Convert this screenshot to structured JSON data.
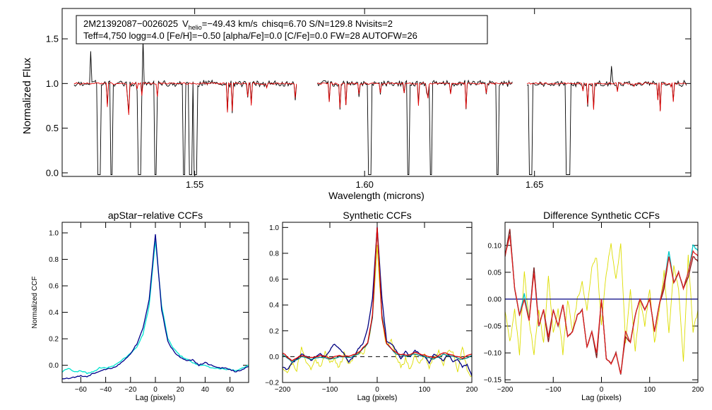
{
  "chart_data": [
    {
      "id": "spectrum",
      "type": "line",
      "title": "",
      "xlabel": "Wavelength (microns)",
      "ylabel": "Normalized Flux",
      "xlim": [
        1.511,
        1.696
      ],
      "ylim": [
        -0.04,
        1.84
      ],
      "xticks": [
        1.55,
        1.6,
        1.65
      ],
      "xtick_labels": [
        "1.55",
        "1.60",
        "1.65"
      ],
      "yticks": [
        0.0,
        0.5,
        1.0,
        1.5
      ],
      "ytick_labels": [
        "0.0",
        "0.5",
        "1.0",
        "1.5"
      ],
      "chips": [
        [
          1.5145,
          1.5802
        ],
        [
          1.5861,
          1.6437
        ],
        [
          1.6478,
          1.6949
        ]
      ],
      "spectrum_bad_pixels": [
        1.5218,
        1.5255,
        1.5338,
        1.5385,
        1.5468,
        1.5488,
        1.5502,
        1.6015,
        1.6129,
        1.6195,
        1.6392,
        1.6488,
        1.6596,
        1.6601
      ],
      "series": [
        {
          "name": "observed",
          "color": "#000000"
        },
        {
          "name": "model",
          "color": "#e00000"
        }
      ],
      "annotation": {
        "id": "2M21392087−0026025",
        "v_prefix": "V",
        "v_subscript": "helio",
        "v_value": "=−49.43 km/s",
        "stats": "chisq=6.70  S/N=129.8  Nvisits=2",
        "line2": "Teff=4,750 logg=4.0 [Fe/H]=−0.50 [alpha/Fe]=0.0 [C/Fe]=0.0 FW=28 AUTOFW=26"
      }
    },
    {
      "id": "apstar-ccf",
      "type": "line",
      "title": "apStar−relative CCFs",
      "xlabel": "Lag (pixels)",
      "ylabel": "Normalized CCF",
      "xlim": [
        -75,
        75
      ],
      "ylim": [
        -0.13,
        1.08
      ],
      "xticks": [
        -60,
        -40,
        -20,
        0,
        20,
        40,
        60
      ],
      "xtick_labels": [
        "−60",
        "−40",
        "−20",
        "0",
        "20",
        "40",
        "60"
      ],
      "yticks": [
        0.0,
        0.2,
        0.4,
        0.6,
        0.8,
        1.0
      ],
      "ytick_labels": [
        "0.0",
        "0.2",
        "0.4",
        "0.6",
        "0.8",
        "1.0"
      ],
      "series": [
        {
          "name": "visit 1",
          "color": "#00e5d0",
          "width": 30,
          "x": [
            -75,
            -70,
            -65,
            -60,
            -55,
            -50,
            -45,
            -40,
            -35,
            -30,
            -25,
            -20,
            -15,
            -10,
            -5,
            0,
            5,
            10,
            15,
            20,
            25,
            30,
            35,
            40,
            45,
            50,
            55,
            60,
            65,
            70,
            75
          ],
          "y": [
            -0.05,
            -0.02,
            -0.05,
            -0.04,
            -0.06,
            -0.05,
            -0.02,
            -0.02,
            -0.01,
            0.02,
            0.05,
            0.09,
            0.14,
            0.23,
            0.45,
            0.94,
            0.45,
            0.2,
            0.12,
            0.07,
            0.05,
            0.02,
            0.0,
            0.0,
            -0.02,
            -0.02,
            -0.03,
            -0.03,
            -0.04,
            -0.02,
            0.0
          ]
        },
        {
          "name": "visit 2",
          "color": "#00008b",
          "width": 26,
          "x": [
            -75,
            -70,
            -65,
            -60,
            -55,
            -50,
            -45,
            -40,
            -35,
            -30,
            -25,
            -20,
            -15,
            -10,
            -5,
            0,
            5,
            10,
            15,
            20,
            25,
            30,
            35,
            40,
            45,
            50,
            55,
            60,
            65,
            70,
            75
          ],
          "y": [
            -0.1,
            -0.1,
            -0.09,
            -0.08,
            -0.09,
            -0.06,
            -0.05,
            -0.03,
            -0.02,
            0.0,
            0.04,
            0.09,
            0.16,
            0.28,
            0.5,
            0.99,
            0.42,
            0.18,
            0.1,
            0.06,
            0.04,
            0.04,
            0.0,
            0.02,
            0.0,
            -0.02,
            -0.02,
            -0.03,
            -0.05,
            -0.03,
            -0.01
          ]
        }
      ]
    },
    {
      "id": "synthetic-ccf",
      "type": "line",
      "title": "Synthetic CCFs",
      "xlabel": "Lag (pixels)",
      "ylabel": "",
      "xlim": [
        -200,
        200
      ],
      "ylim": [
        -0.2,
        1.04
      ],
      "xticks": [
        -200,
        -100,
        0,
        100,
        200
      ],
      "xtick_labels": [
        "−200",
        "−100",
        "0",
        "100",
        "200"
      ],
      "yticks": [
        -0.2,
        0.0,
        0.2,
        0.4,
        0.6,
        0.8,
        1.0
      ],
      "ytick_labels": [
        "−0.2",
        "0.0",
        "0.2",
        "0.4",
        "0.6",
        "0.8",
        "1.0"
      ],
      "zero_line": true,
      "series": [
        {
          "name": "yellow",
          "color": "#dddd00",
          "width": 22,
          "x": [
            -200,
            -190,
            -180,
            -170,
            -160,
            -150,
            -140,
            -130,
            -120,
            -110,
            -100,
            -90,
            -80,
            -70,
            -60,
            -50,
            -40,
            -30,
            -20,
            -10,
            0,
            10,
            20,
            30,
            40,
            50,
            60,
            70,
            80,
            90,
            100,
            110,
            120,
            130,
            140,
            150,
            160,
            170,
            180,
            190,
            200
          ],
          "y": [
            -0.08,
            -0.12,
            -0.05,
            -0.1,
            0.06,
            -0.03,
            -0.1,
            -0.02,
            -0.08,
            0.04,
            -0.05,
            -0.02,
            -0.08,
            0.02,
            -0.06,
            0.0,
            0.04,
            0.02,
            0.1,
            0.3,
            0.85,
            0.3,
            0.08,
            0.12,
            0.0,
            -0.08,
            -0.02,
            -0.1,
            0.02,
            -0.05,
            0.02,
            -0.08,
            0.0,
            0.04,
            -0.06,
            0.06,
            0.02,
            -0.12,
            0.08,
            -0.1,
            -0.15
          ]
        },
        {
          "name": "navy",
          "color": "#000080",
          "width": 20,
          "x": [
            -200,
            -190,
            -180,
            -170,
            -160,
            -150,
            -140,
            -130,
            -120,
            -110,
            -100,
            -90,
            -80,
            -70,
            -60,
            -50,
            -40,
            -30,
            -20,
            -10,
            0,
            10,
            20,
            30,
            40,
            50,
            60,
            70,
            80,
            90,
            100,
            110,
            120,
            130,
            140,
            150,
            160,
            170,
            180,
            190,
            200
          ],
          "y": [
            -0.08,
            -0.1,
            -0.05,
            -0.02,
            0.02,
            0.0,
            -0.03,
            0.0,
            0.02,
            0.0,
            0.05,
            0.1,
            0.06,
            0.02,
            -0.04,
            0.0,
            0.06,
            0.1,
            0.22,
            0.45,
            1.0,
            0.45,
            0.12,
            0.1,
            0.05,
            -0.02,
            0.04,
            0.0,
            0.05,
            0.02,
            0.0,
            -0.05,
            0.02,
            0.0,
            -0.03,
            0.02,
            -0.04,
            -0.02,
            -0.08,
            -0.06,
            -0.15
          ]
        },
        {
          "name": "teal",
          "color": "#008080",
          "width": 20,
          "x": [
            -200,
            -180,
            -160,
            -140,
            -120,
            -100,
            -80,
            -60,
            -40,
            -20,
            -10,
            0,
            10,
            20,
            40,
            60,
            80,
            100,
            120,
            140,
            160,
            180,
            200
          ],
          "y": [
            0.02,
            -0.04,
            0.0,
            -0.02,
            0.0,
            -0.02,
            0.0,
            -0.01,
            0.02,
            0.1,
            0.3,
            1.0,
            0.32,
            0.1,
            0.02,
            0.0,
            0.02,
            0.0,
            -0.02,
            0.02,
            0.0,
            -0.02,
            0.01
          ]
        },
        {
          "name": "red",
          "color": "#dd0000",
          "width": 20,
          "x": [
            -200,
            -180,
            -160,
            -140,
            -120,
            -100,
            -80,
            -60,
            -40,
            -20,
            -10,
            0,
            10,
            20,
            40,
            60,
            80,
            100,
            120,
            140,
            160,
            180,
            200
          ],
          "y": [
            0.03,
            -0.03,
            0.01,
            -0.01,
            0.01,
            -0.01,
            0.01,
            0.0,
            0.03,
            0.11,
            0.32,
            1.0,
            0.3,
            0.1,
            0.03,
            0.01,
            0.03,
            0.01,
            -0.01,
            0.03,
            0.01,
            -0.01,
            0.02
          ]
        }
      ]
    },
    {
      "id": "difference-ccf",
      "type": "line",
      "title": "Difference Synthetic CCFs",
      "xlabel": "Lag (pixels)",
      "ylabel": "",
      "xlim": [
        -200,
        200
      ],
      "ylim": [
        -0.155,
        0.143
      ],
      "xticks": [
        -200,
        -100,
        0,
        100,
        200
      ],
      "xtick_labels": [
        "−200",
        "−100",
        "0",
        "100",
        "200"
      ],
      "yticks": [
        -0.15,
        -0.1,
        -0.05,
        0.0,
        0.05,
        0.1
      ],
      "ytick_labels": [
        "−0.15",
        "−0.10",
        "−0.05",
        "0.00",
        "0.05",
        "0.10"
      ],
      "series": [
        {
          "name": "yellow",
          "color": "#dddd00",
          "width": 22,
          "x": [
            -200,
            -190,
            -180,
            -170,
            -160,
            -150,
            -140,
            -130,
            -120,
            -110,
            -100,
            -90,
            -80,
            -70,
            -60,
            -50,
            -40,
            -30,
            -20,
            -10,
            0,
            10,
            20,
            30,
            40,
            50,
            60,
            70,
            80,
            90,
            100,
            110,
            120,
            130,
            140,
            150,
            160,
            170,
            180,
            190,
            200
          ],
          "y": [
            -0.02,
            -0.08,
            -0.02,
            -0.1,
            0.05,
            -0.04,
            -0.1,
            -0.02,
            -0.08,
            0.04,
            -0.06,
            -0.02,
            -0.1,
            0.0,
            -0.06,
            0.0,
            0.03,
            -0.02,
            0.06,
            0.08,
            -0.05,
            0.05,
            0.1,
            0.04,
            0.1,
            -0.08,
            0.02,
            -0.1,
            0.0,
            -0.05,
            0.02,
            -0.08,
            -0.02,
            0.05,
            -0.06,
            0.06,
            0.02,
            -0.12,
            0.08,
            -0.06,
            -0.02
          ]
        },
        {
          "name": "navy",
          "color": "#000080",
          "width": 22,
          "x": [
            -200,
            200
          ],
          "y": [
            0.0,
            0.0
          ]
        },
        {
          "name": "teal",
          "color": "#00c8c8",
          "width": 20,
          "x": [
            -200,
            -190,
            -180,
            -170,
            -160,
            -150,
            -140,
            -130,
            -120,
            -110,
            -100,
            -90,
            -80,
            -70,
            -60,
            -50,
            -40,
            -30,
            -20,
            -10,
            0,
            10,
            20,
            30,
            40,
            50,
            60,
            70,
            80,
            90,
            100,
            110,
            120,
            130,
            140,
            150,
            160,
            170,
            180,
            190,
            200
          ],
          "y": [
            0.08,
            0.13,
            0.02,
            -0.03,
            0.01,
            -0.04,
            0.06,
            -0.05,
            -0.02,
            -0.07,
            -0.02,
            -0.05,
            -0.01,
            -0.07,
            -0.06,
            -0.03,
            -0.02,
            -0.09,
            -0.06,
            -0.11,
            0.0,
            -0.11,
            -0.12,
            -0.1,
            -0.14,
            -0.06,
            -0.08,
            -0.03,
            0.0,
            -0.02,
            0.0,
            -0.06,
            -0.01,
            0.03,
            0.09,
            0.03,
            0.05,
            0.02,
            0.05,
            0.1,
            0.09
          ]
        },
        {
          "name": "maroon",
          "color": "#8b1a1a",
          "width": 20,
          "x": [
            -200,
            -190,
            -180,
            -170,
            -160,
            -150,
            -140,
            -130,
            -120,
            -110,
            -100,
            -90,
            -80,
            -70,
            -60,
            -50,
            -40,
            -30,
            -20,
            -10,
            0,
            10,
            20,
            30,
            40,
            50,
            60,
            70,
            80,
            90,
            100,
            110,
            120,
            130,
            140,
            150,
            160,
            170,
            180,
            190,
            200
          ],
          "y": [
            0.08,
            0.13,
            0.02,
            -0.03,
            0.0,
            -0.04,
            0.06,
            -0.05,
            -0.02,
            -0.08,
            -0.02,
            -0.05,
            -0.01,
            -0.07,
            -0.06,
            -0.03,
            -0.02,
            -0.09,
            -0.06,
            -0.11,
            0.0,
            -0.11,
            -0.12,
            -0.1,
            -0.14,
            -0.07,
            -0.08,
            -0.03,
            0.0,
            -0.02,
            0.0,
            -0.06,
            -0.01,
            0.02,
            0.08,
            0.03,
            0.05,
            0.02,
            0.04,
            0.08,
            0.07
          ]
        },
        {
          "name": "red",
          "color": "#e02020",
          "width": 20,
          "x": [
            -200,
            -190,
            -180,
            -170,
            -160,
            -150,
            -140,
            -130,
            -120,
            -110,
            -100,
            -90,
            -80,
            -70,
            -60,
            -50,
            -40,
            -30,
            -20,
            -10,
            0,
            10,
            20,
            30,
            40,
            50,
            60,
            70,
            80,
            90,
            100,
            110,
            120,
            130,
            140,
            150,
            160,
            170,
            180,
            190,
            200
          ],
          "y": [
            0.08,
            0.12,
            0.02,
            -0.03,
            0.0,
            -0.04,
            0.05,
            -0.05,
            -0.02,
            -0.07,
            -0.02,
            -0.05,
            -0.01,
            -0.07,
            -0.06,
            -0.03,
            -0.02,
            -0.09,
            -0.06,
            -0.1,
            0.0,
            -0.11,
            -0.12,
            -0.1,
            -0.14,
            -0.06,
            -0.08,
            -0.03,
            0.0,
            -0.02,
            0.0,
            -0.06,
            -0.01,
            0.03,
            0.08,
            0.03,
            0.05,
            0.02,
            0.05,
            0.09,
            0.08
          ]
        }
      ]
    }
  ]
}
